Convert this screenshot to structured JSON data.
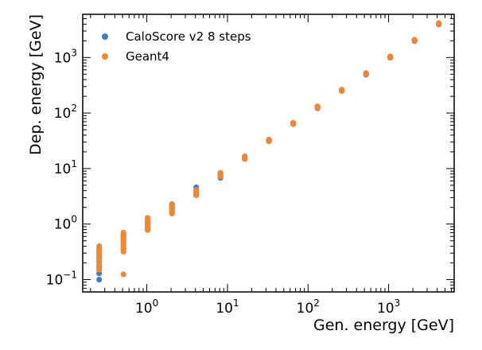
{
  "chart_data": {
    "type": "scatter",
    "xlabel": "Gen. energy [GeV]",
    "ylabel": "Dep. energy [GeV]",
    "xscale": "log",
    "yscale": "log",
    "xlim": [
      0.16,
      6500
    ],
    "ylim": [
      0.06,
      6000
    ],
    "x_ticks": [
      {
        "base": "10",
        "exp": "0",
        "value": 1
      },
      {
        "base": "10",
        "exp": "1",
        "value": 10
      },
      {
        "base": "10",
        "exp": "2",
        "value": 100
      },
      {
        "base": "10",
        "exp": "3",
        "value": 1000
      }
    ],
    "y_ticks": [
      {
        "base": "10",
        "exp": "−1",
        "value": 0.1
      },
      {
        "base": "10",
        "exp": "0",
        "value": 1
      },
      {
        "base": "10",
        "exp": "1",
        "value": 10
      },
      {
        "base": "10",
        "exp": "2",
        "value": 100
      },
      {
        "base": "10",
        "exp": "3",
        "value": 1000
      }
    ],
    "grid": false,
    "legend_position": "top-left",
    "series": [
      {
        "name": "CaloScore v2 8 steps",
        "color": "#3f7fbf",
        "points": [
          {
            "x": 0.256,
            "y": [
              0.1,
              0.13,
              0.17,
              0.21,
              0.25,
              0.29,
              0.33
            ]
          },
          {
            "x": 0.512,
            "y": [
              0.36,
              0.42,
              0.48,
              0.55,
              0.62
            ]
          },
          {
            "x": 1.024,
            "y": [
              0.8,
              0.9,
              1.0,
              1.1,
              1.2
            ]
          },
          {
            "x": 2.048,
            "y": [
              1.6,
              1.8,
              2.0,
              2.2
            ]
          },
          {
            "x": 4.096,
            "y": [
              3.4,
              3.9,
              4.6
            ]
          },
          {
            "x": 8.192,
            "y": [
              6.8,
              7.6,
              8.2
            ]
          },
          {
            "x": 16.384,
            "y": [
              15.0,
              16.5
            ]
          },
          {
            "x": 32.768,
            "y": [
              31.0,
              33.0
            ]
          },
          {
            "x": 65.536,
            "y": [
              64.0,
              66.0
            ]
          },
          {
            "x": 131.072,
            "y": [
              122,
              130
            ]
          },
          {
            "x": 262.144,
            "y": [
              250,
              260
            ]
          },
          {
            "x": 524.288,
            "y": [
              490,
              510
            ]
          },
          {
            "x": 1048.576,
            "y": [
              990,
              1020
            ]
          },
          {
            "x": 2097.152,
            "y": [
              1980,
              2020
            ]
          },
          {
            "x": 4194.304,
            "y": [
              3950,
              4050
            ]
          }
        ]
      },
      {
        "name": "Geant4",
        "color": "#ee8837",
        "points": [
          {
            "x": 0.256,
            "y": [
              0.15,
              0.18,
              0.2,
              0.22,
              0.24,
              0.26,
              0.28,
              0.3,
              0.32,
              0.34,
              0.37,
              0.4
            ]
          },
          {
            "x": 0.512,
            "y": [
              0.125,
              0.32,
              0.36,
              0.4,
              0.44,
              0.48,
              0.52,
              0.56,
              0.6,
              0.65,
              0.7
            ]
          },
          {
            "x": 1.024,
            "y": [
              0.78,
              0.82,
              0.87,
              0.92,
              0.98,
              1.04,
              1.1,
              1.16,
              1.22,
              1.3
            ]
          },
          {
            "x": 2.048,
            "y": [
              1.55,
              1.65,
              1.75,
              1.85,
              1.95,
              2.05,
              2.15,
              2.3
            ]
          },
          {
            "x": 4.096,
            "y": [
              3.3,
              3.5,
              3.7,
              3.9,
              4.1
            ]
          },
          {
            "x": 8.192,
            "y": [
              7.2,
              7.6,
              8.0,
              8.4
            ]
          },
          {
            "x": 16.384,
            "y": [
              14.8,
              15.6,
              16.4
            ]
          },
          {
            "x": 32.768,
            "y": [
              31.0,
              32.0,
              33.0
            ]
          },
          {
            "x": 65.536,
            "y": [
              63.0,
              65.0,
              67.0
            ]
          },
          {
            "x": 131.072,
            "y": [
              124,
              128,
              132
            ]
          },
          {
            "x": 262.144,
            "y": [
              252,
              258,
              264
            ]
          },
          {
            "x": 524.288,
            "y": [
              500,
              512,
              525
            ]
          },
          {
            "x": 1048.576,
            "y": [
              1000,
              1025,
              1050
            ]
          },
          {
            "x": 2097.152,
            "y": [
              2010,
              2050,
              2090
            ]
          },
          {
            "x": 4194.304,
            "y": [
              4020,
              4100,
              4180
            ]
          }
        ]
      }
    ]
  }
}
